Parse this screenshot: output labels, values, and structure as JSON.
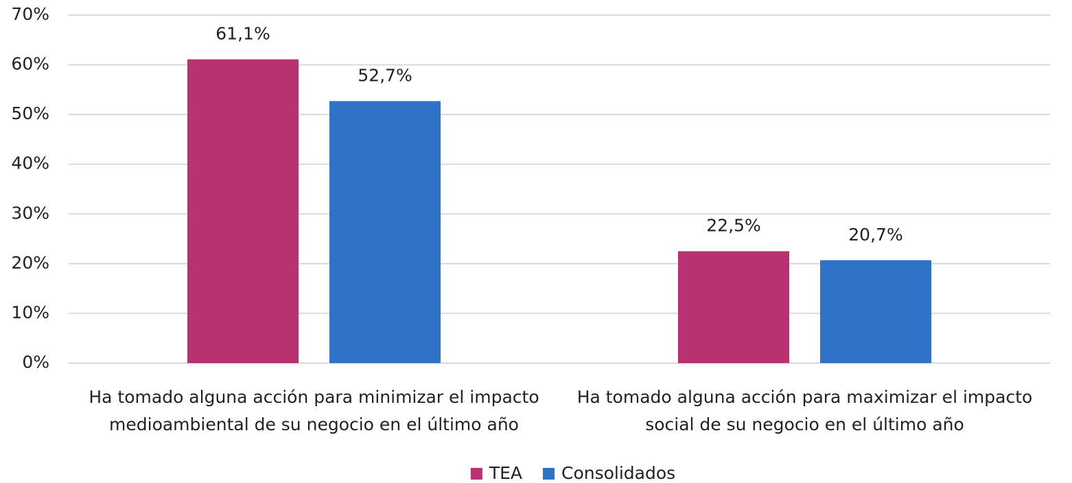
{
  "chart_data": {
    "type": "bar",
    "categories": [
      "Ha tomado alguna acción para minimizar el impacto medioambiental de su negocio en el último año",
      "Ha tomado alguna acción para maximizar el impacto social de su negocio en el último año"
    ],
    "series": [
      {
        "name": "TEA",
        "color": "#b83272",
        "values": [
          61.1,
          22.5
        ],
        "value_labels": [
          "61,1%",
          "22,5%"
        ]
      },
      {
        "name": "Consolidados",
        "color": "#3072c8",
        "values": [
          52.7,
          20.7
        ],
        "value_labels": [
          "52,7%",
          "20,7%"
        ]
      }
    ],
    "ylim": [
      0,
      70
    ],
    "yticks": [
      {
        "value": 0,
        "label": "0%"
      },
      {
        "value": 10,
        "label": "10%"
      },
      {
        "value": 20,
        "label": "20%"
      },
      {
        "value": 30,
        "label": "30%"
      },
      {
        "value": 40,
        "label": "40%"
      },
      {
        "value": 50,
        "label": "50%"
      },
      {
        "value": 60,
        "label": "60%"
      },
      {
        "value": 70,
        "label": "70%"
      }
    ],
    "grid": true,
    "legend": "bottom"
  }
}
